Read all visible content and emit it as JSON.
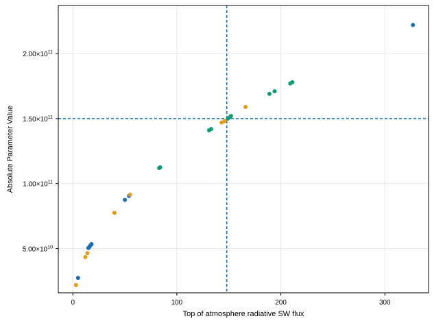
{
  "chart_data": {
    "type": "scatter",
    "title": "",
    "xlabel": "Top of atmosphere radiative SW flux",
    "ylabel": "Absolute Parameter Value",
    "xlim": [
      -14,
      342
    ],
    "ylim": [
      16000000000.0,
      237000000000.0
    ],
    "grid": true,
    "x_ticks": [
      {
        "value": 0,
        "label": "0"
      },
      {
        "value": 100,
        "label": "100"
      },
      {
        "value": 200,
        "label": "200"
      },
      {
        "value": 300,
        "label": "300"
      }
    ],
    "y_ticks": [
      {
        "value": 50000000000.0,
        "mantissa": "5.00",
        "exp": "10"
      },
      {
        "value": 100000000000.0,
        "mantissa": "1.00",
        "exp": "11"
      },
      {
        "value": 150000000000.0,
        "mantissa": "1.50",
        "exp": "11"
      },
      {
        "value": 200000000000.0,
        "mantissa": "2.00",
        "exp": "11"
      }
    ],
    "reference_lines": {
      "vertical_x": 148,
      "horizontal_y": 150000000000.0,
      "color": "#1f7ab0",
      "style": "dashed"
    },
    "series": [
      {
        "color": "#1a6fb2",
        "points": [
          [
            5,
            27500000000.0
          ],
          [
            15,
            50500000000.0
          ],
          [
            16,
            51500000000.0
          ],
          [
            17,
            52500000000.0
          ],
          [
            18,
            53500000000.0
          ],
          [
            50,
            87500000000.0
          ],
          [
            54,
            90500000000.0
          ],
          [
            327,
            222000000000.0
          ]
        ]
      },
      {
        "color": "#e39b1a",
        "points": [
          [
            3,
            22000000000.0
          ],
          [
            12,
            43500000000.0
          ],
          [
            14,
            46500000000.0
          ],
          [
            40,
            77500000000.0
          ],
          [
            55,
            91500000000.0
          ],
          [
            143,
            147000000000.0
          ],
          [
            146,
            148000000000.0
          ],
          [
            166,
            159000000000.0
          ]
        ]
      },
      {
        "color": "#0f9a73",
        "points": [
          [
            83,
            112000000000.0
          ],
          [
            84,
            112500000000.0
          ],
          [
            131,
            141000000000.0
          ],
          [
            133,
            142000000000.0
          ],
          [
            149,
            150000000000.0
          ],
          [
            151,
            151000000000.0
          ],
          [
            152,
            152000000000.0
          ],
          [
            189,
            169000000000.0
          ],
          [
            194,
            171000000000.0
          ],
          [
            209,
            177000000000.0
          ],
          [
            211,
            178000000000.0
          ]
        ]
      }
    ]
  }
}
